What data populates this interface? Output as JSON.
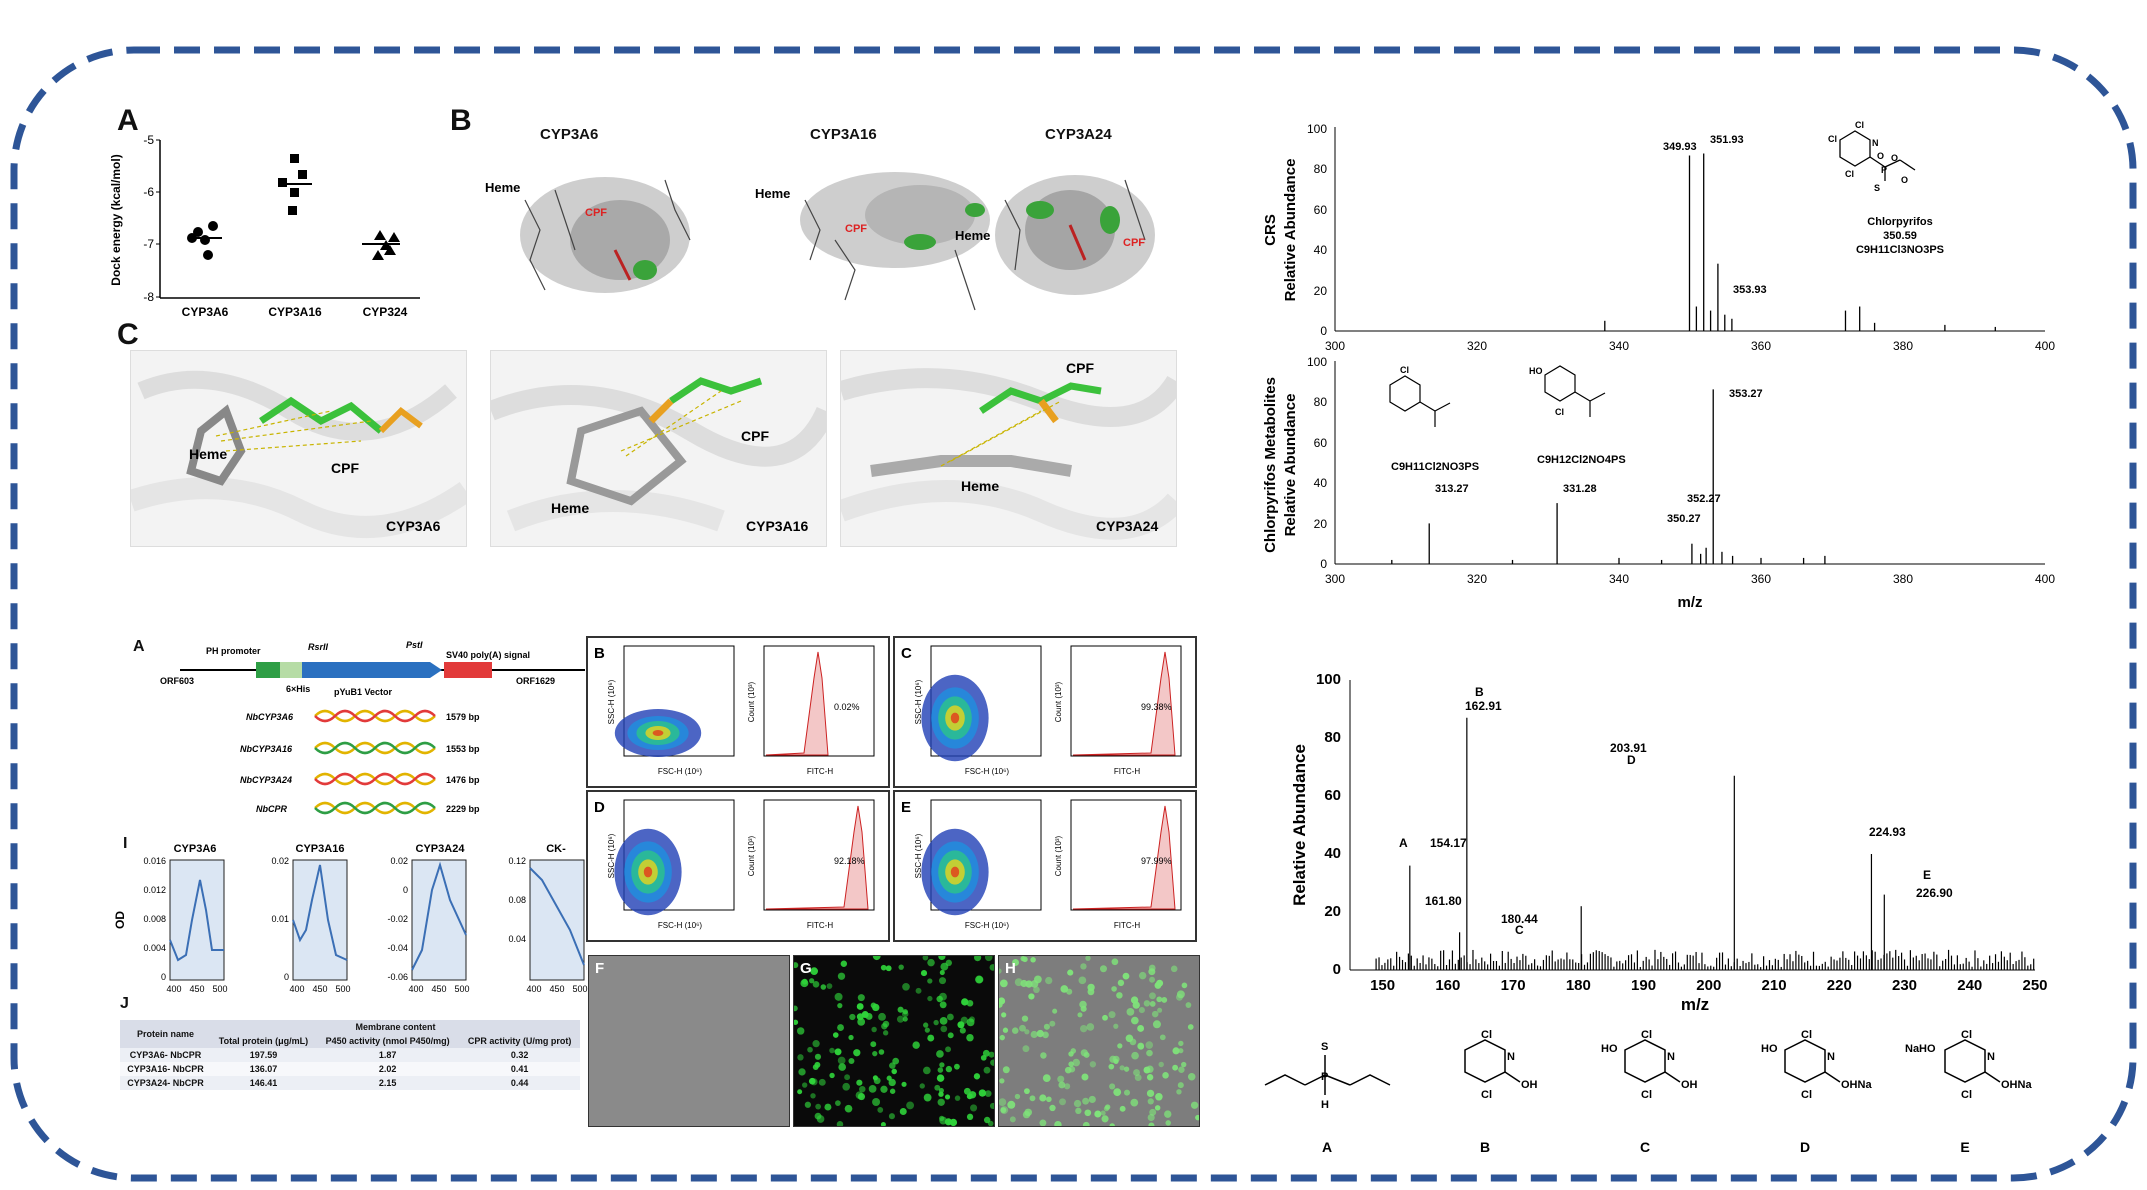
{
  "panelA_dock": {
    "label": "A",
    "ylabel": "Dock energy (kcal/mol)",
    "yticks": [
      "-5",
      "-6",
      "-7",
      "-8"
    ],
    "categories": [
      "CYP3A6",
      "CYP3A16",
      "CYP324"
    ]
  },
  "panelB": {
    "label": "B",
    "titles": [
      "CYP3A6",
      "CYP3A16",
      "CYP3A24"
    ],
    "heme": "Heme",
    "cpf": "CPF"
  },
  "panelC": {
    "label": "C",
    "names": [
      "CYP3A6",
      "CYP3A16",
      "CYP3A24"
    ],
    "heme": "Heme",
    "cpf": "CPF"
  },
  "ms_top": {
    "ylabel1": "CRS",
    "ylabel2": "Relative Abundance",
    "xticks": [
      "300",
      "320",
      "340",
      "360",
      "380",
      "400"
    ],
    "yticks": [
      "0",
      "20",
      "40",
      "60",
      "80",
      "100"
    ],
    "peaks": [
      "349.93",
      "351.93",
      "353.93"
    ],
    "compound": "Chlorpyrifos",
    "mass": "350.59",
    "formula": "C9H11Cl3NO3PS",
    "mol_labels": [
      "Cl",
      "Cl",
      "N",
      "Cl",
      "P",
      "O",
      "O",
      "S",
      "O"
    ]
  },
  "ms_mid": {
    "ylabel1": "Chlorpyrifos Metabolites",
    "ylabel2": "Relative Abundance",
    "xlabel": "m/z",
    "xticks": [
      "300",
      "320",
      "340",
      "360",
      "380",
      "400"
    ],
    "yticks": [
      "0",
      "20",
      "40",
      "60",
      "80",
      "100"
    ],
    "peaks": [
      "313.27",
      "331.28",
      "350.27",
      "352.27",
      "353.27"
    ],
    "formula1": "C9H11Cl2NO3PS",
    "formula2": "C9H12Cl2NO4PS",
    "mol_labels": [
      "Cl",
      "HO",
      "Cl"
    ]
  },
  "ms_bottom": {
    "ylabel": "Relative Abundance",
    "xlabel": "m/z",
    "xticks": [
      "150",
      "160",
      "170",
      "180",
      "190",
      "200",
      "210",
      "220",
      "230",
      "240",
      "250"
    ],
    "yticks": [
      "0",
      "20",
      "40",
      "60",
      "80",
      "100"
    ],
    "peaks": [
      {
        "letter": "A",
        "value": "154.17"
      },
      {
        "letter": "B",
        "value": "162.91"
      },
      {
        "letter": "",
        "value": "161.80"
      },
      {
        "letter": "C",
        "value": "180.44"
      },
      {
        "letter": "D",
        "value": "203.91"
      },
      {
        "letter": "",
        "value": "224.93"
      },
      {
        "letter": "E",
        "value": "226.90"
      }
    ]
  },
  "structures": {
    "letters": [
      "A",
      "B",
      "C",
      "D",
      "E"
    ],
    "atoms": {
      "S": "S",
      "P": "P",
      "H": "H",
      "Cl": "Cl",
      "N": "N",
      "OH": "OH",
      "HO": "HO",
      "ONa": "OHNa",
      "NaO": "NaHO"
    }
  },
  "panelA_vector": {
    "label": "A",
    "promoter": "PH promoter",
    "his": "6×His",
    "rsr": "RsrII",
    "pst": "PstI",
    "signal": "SV40 poly(A) signal",
    "orf1": "ORF603",
    "orf2": "ORF1629",
    "vector": "pYuB1 Vector",
    "genes": [
      {
        "name": "NbCYP3A6",
        "size": "1579 bp"
      },
      {
        "name": "NbCYP3A16",
        "size": "1553 bp"
      },
      {
        "name": "NbCYP3A24",
        "size": "1476 bp"
      },
      {
        "name": "NbCPR",
        "size": "2229 bp"
      }
    ]
  },
  "panelI": {
    "label": "I",
    "ylabel": "OD",
    "titles": [
      "CYP3A6",
      "CYP3A16",
      "CYP3A24",
      "CK-"
    ],
    "yticks": [
      [
        "0.016",
        "0.012",
        "0.008",
        "0.004",
        "0"
      ],
      [
        "0.02",
        "0.01",
        "0"
      ],
      [
        "0.02",
        "0",
        "-0.02",
        "-0.04",
        "-0.06"
      ],
      [
        "0.12",
        "0.08",
        "0.04"
      ]
    ],
    "xticks": [
      "400",
      "450",
      "500"
    ]
  },
  "panelJ": {
    "label": "J",
    "group": "Membrane content",
    "headers": [
      "Protein name",
      "Total protein (μg/mL)",
      "P450 activity (nmol P450/mg)",
      "CPR activity (U/mg prot)"
    ],
    "rows": [
      [
        "CYP3A6- NbCPR",
        "197.59",
        "1.87",
        "0.32"
      ],
      [
        "CYP3A16- NbCPR",
        "136.07",
        "2.02",
        "0.41"
      ],
      [
        "CYP3A24- NbCPR",
        "146.41",
        "2.15",
        "0.44"
      ]
    ]
  },
  "flow": {
    "labels": [
      "B",
      "C",
      "D",
      "E"
    ],
    "percents": [
      "0.02%",
      "99.38%",
      "92.18%",
      "97.99%"
    ],
    "xlabel_scatter": "FSC-H (10⁶)",
    "ylabel_scatter": "SSC-H (10⁶)",
    "xlabel_hist": "FITC-H",
    "ylabel_hist": "Count (10³)"
  },
  "micro": {
    "labels": [
      "F",
      "G",
      "H"
    ]
  },
  "colors": {
    "frame": "#2e5597",
    "spectrum": "#000000",
    "highlight": "#e23a3a",
    "green": "#3aa33a"
  }
}
